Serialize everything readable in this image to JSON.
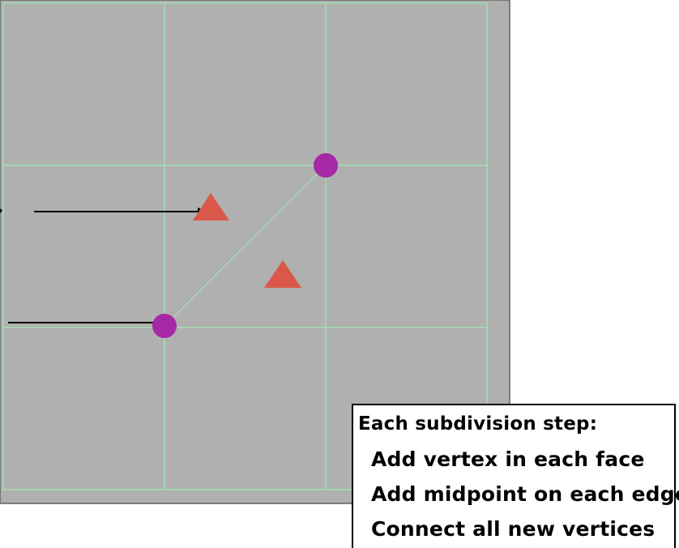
{
  "colors": {
    "panel_background": "#b0b0b0",
    "panel_border": "#606060",
    "grid_line": "#9ee8b4",
    "vertex_marker": "#a628a6",
    "face_marker": "#d9584a",
    "arrow": "#000000"
  },
  "markers": {
    "vertex_icon": "circle",
    "face_icon": "triangle"
  },
  "caption": {
    "title": "Each subdivision step:",
    "steps": [
      "Add vertex in each face",
      "Add midpoint on each edge",
      "Connect all new vertices"
    ]
  }
}
